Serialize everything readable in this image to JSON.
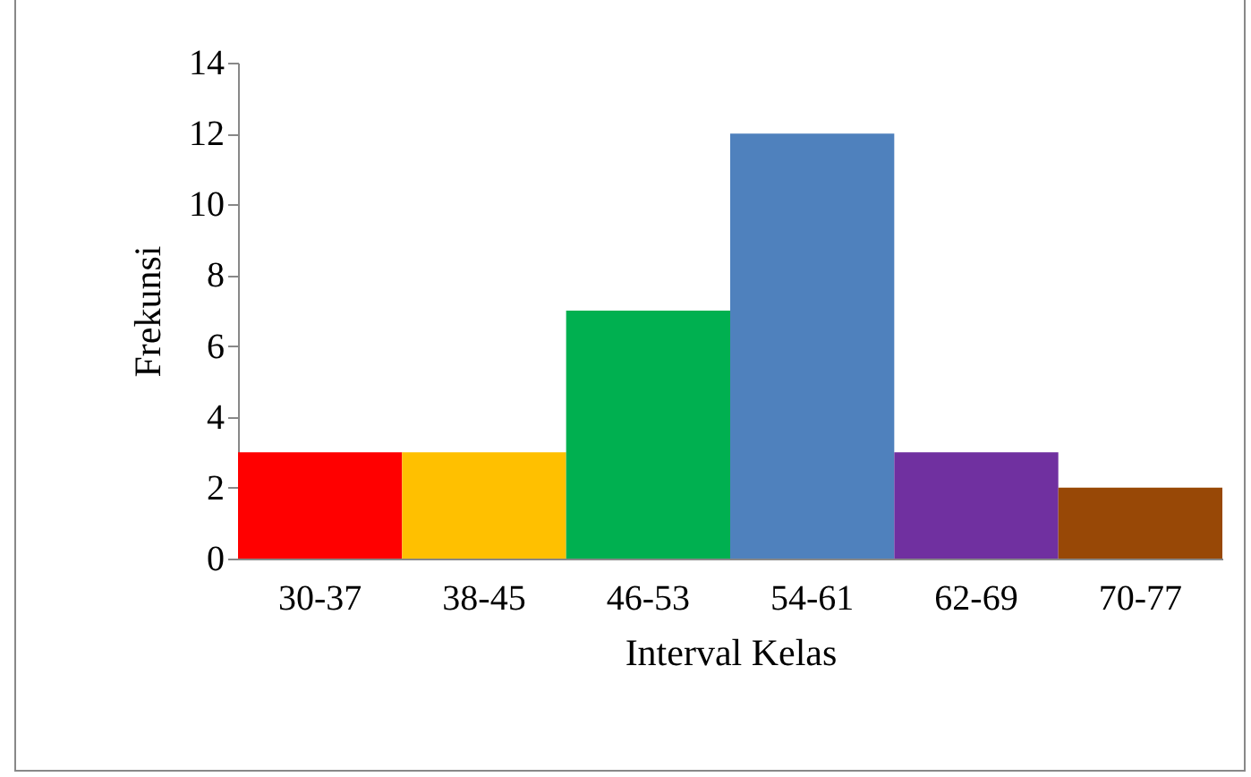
{
  "chart_data": {
    "type": "bar",
    "xlabel": "Interval Kelas",
    "ylabel": "Frekunsi",
    "categories": [
      "30-37",
      "38-45",
      "46-53",
      "54-61",
      "62-69",
      "70-77"
    ],
    "values": [
      3,
      3,
      7,
      12,
      3,
      2
    ],
    "colors": [
      "#ff0000",
      "#ffc000",
      "#00b050",
      "#4f81bd",
      "#7030a0",
      "#984806"
    ],
    "ylim": [
      0,
      14
    ],
    "yticks": [
      0,
      2,
      4,
      6,
      8,
      10,
      12,
      14
    ]
  }
}
